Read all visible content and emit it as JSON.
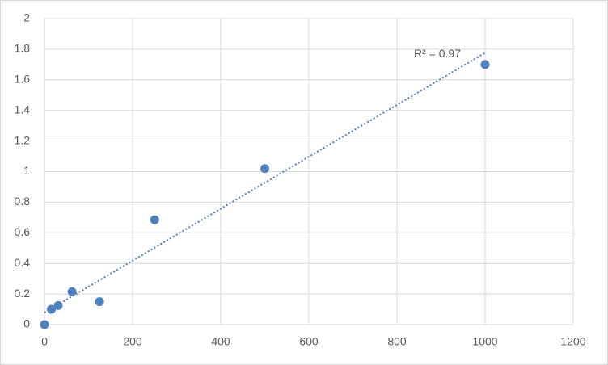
{
  "chart_data": {
    "type": "scatter",
    "x": [
      0,
      15.625,
      31.25,
      62.5,
      125,
      250,
      500,
      1000
    ],
    "values": [
      0,
      0.1,
      0.125,
      0.215,
      0.15,
      0.685,
      1.02,
      1.7
    ],
    "color": "#4f81bd",
    "xlim": [
      0,
      1200
    ],
    "xticks": [
      0,
      200,
      400,
      600,
      800,
      1000,
      1200
    ],
    "ylim": [
      0,
      2
    ],
    "yticks": [
      0,
      0.2,
      0.4,
      0.6,
      0.8,
      1,
      1.2,
      1.4,
      1.6,
      1.8,
      2
    ],
    "grid": true,
    "trendline": "linear",
    "annotation": "R² = 0.97"
  }
}
